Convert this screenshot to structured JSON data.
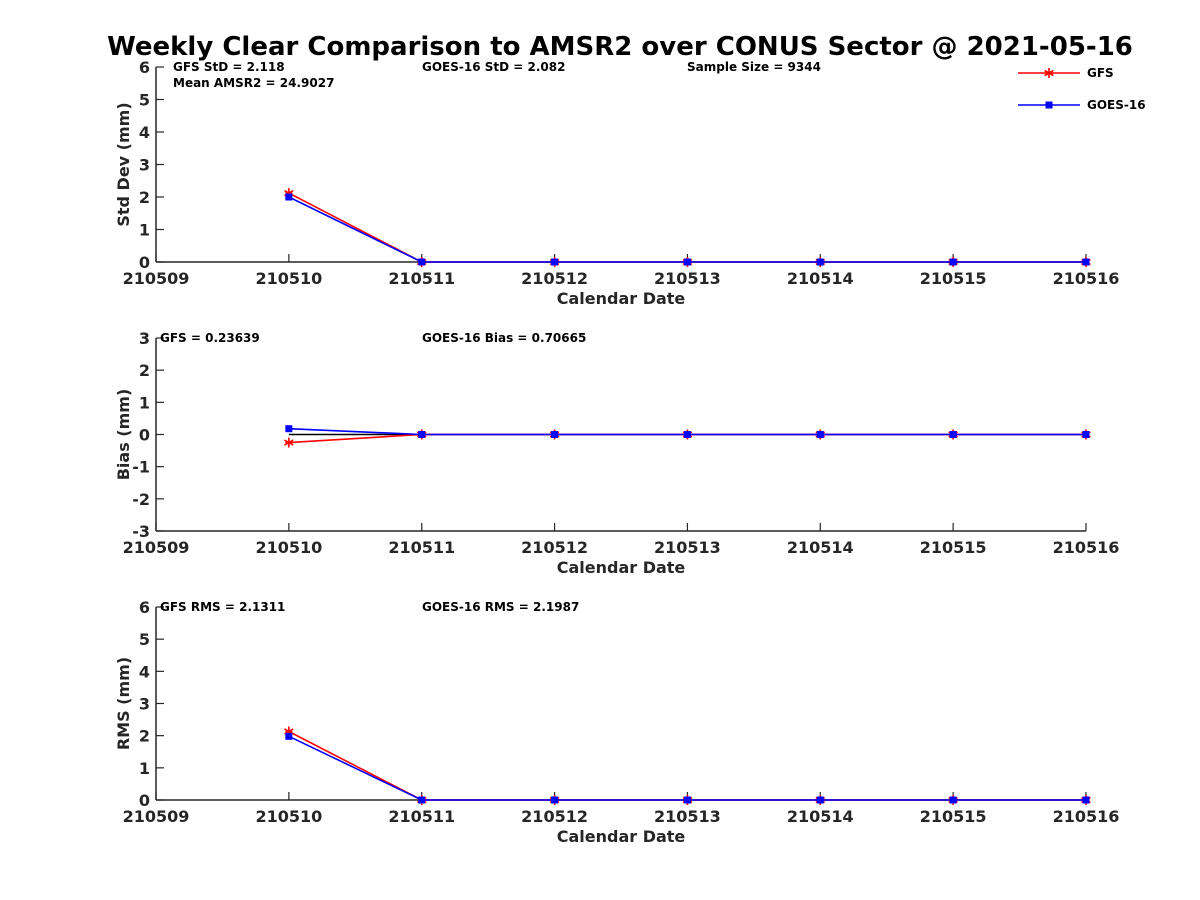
{
  "title": "Weekly Clear Comparison to AMSR2 over CONUS Sector @ 2021-05-16",
  "legend": {
    "placement": "top-right",
    "entries": [
      {
        "name": "GFS",
        "color": "#ff0000",
        "marker": "asterisk"
      },
      {
        "name": "GOES-16",
        "color": "#0000ff",
        "marker": "square"
      }
    ]
  },
  "chart_data": [
    {
      "type": "line",
      "ylabel": "Std Dev (mm)",
      "xlabel": "Calendar Date",
      "categories": [
        "210509",
        "210510",
        "210511",
        "210512",
        "210513",
        "210514",
        "210515",
        "210516"
      ],
      "ylim": [
        0,
        6
      ],
      "yticks": [
        "0",
        "1",
        "2",
        "3",
        "4",
        "5",
        "6"
      ],
      "annotations": [
        "GFS StD = 2.118",
        "Mean AMSR2 = 24.9027",
        "GOES-16 StD = 2.082",
        "Sample Size = 9344"
      ],
      "series": [
        {
          "name": "GFS",
          "color": "#ff0000",
          "marker": "asterisk",
          "x": [
            "210510",
            "210511",
            "210512",
            "210513",
            "210514",
            "210515",
            "210516"
          ],
          "values": [
            2.12,
            0,
            0,
            0,
            0,
            0,
            0
          ]
        },
        {
          "name": "GOES-16",
          "color": "#0000ff",
          "marker": "square",
          "x": [
            "210510",
            "210511",
            "210512",
            "210513",
            "210514",
            "210515",
            "210516"
          ],
          "values": [
            2.0,
            0,
            0,
            0,
            0,
            0,
            0
          ]
        }
      ]
    },
    {
      "type": "line",
      "ylabel": "Bias (mm)",
      "xlabel": "Calendar Date",
      "categories": [
        "210509",
        "210510",
        "210511",
        "210512",
        "210513",
        "210514",
        "210515",
        "210516"
      ],
      "ylim": [
        -3,
        3
      ],
      "yticks": [
        "-3",
        "-2",
        "-1",
        "0",
        "1",
        "2",
        "3"
      ],
      "zero_line": true,
      "annotations": [
        "GFS = 0.23639",
        "GOES-16 Bias  = 0.70665"
      ],
      "series": [
        {
          "name": "GFS",
          "color": "#ff0000",
          "marker": "asterisk",
          "x": [
            "210510",
            "210511",
            "210512",
            "210513",
            "210514",
            "210515",
            "210516"
          ],
          "values": [
            -0.25,
            0,
            0,
            0,
            0,
            0,
            0
          ]
        },
        {
          "name": "GOES-16",
          "color": "#0000ff",
          "marker": "square",
          "x": [
            "210510",
            "210511",
            "210512",
            "210513",
            "210514",
            "210515",
            "210516"
          ],
          "values": [
            0.18,
            0,
            0,
            0,
            0,
            0,
            0
          ]
        }
      ]
    },
    {
      "type": "line",
      "ylabel": "RMS (mm)",
      "xlabel": "Calendar Date",
      "categories": [
        "210509",
        "210510",
        "210511",
        "210512",
        "210513",
        "210514",
        "210515",
        "210516"
      ],
      "ylim": [
        0,
        6
      ],
      "yticks": [
        "0",
        "1",
        "2",
        "3",
        "4",
        "5",
        "6"
      ],
      "annotations": [
        "GFS RMS = 2.1311",
        "GOES-16 RMS = 2.1987"
      ],
      "series": [
        {
          "name": "GFS",
          "color": "#ff0000",
          "marker": "asterisk",
          "x": [
            "210510",
            "210511",
            "210512",
            "210513",
            "210514",
            "210515",
            "210516"
          ],
          "values": [
            2.13,
            0,
            0,
            0,
            0,
            0,
            0
          ]
        },
        {
          "name": "GOES-16",
          "color": "#0000ff",
          "marker": "square",
          "x": [
            "210510",
            "210511",
            "210512",
            "210513",
            "210514",
            "210515",
            "210516"
          ],
          "values": [
            1.98,
            0,
            0,
            0,
            0,
            0,
            0
          ]
        }
      ]
    }
  ]
}
